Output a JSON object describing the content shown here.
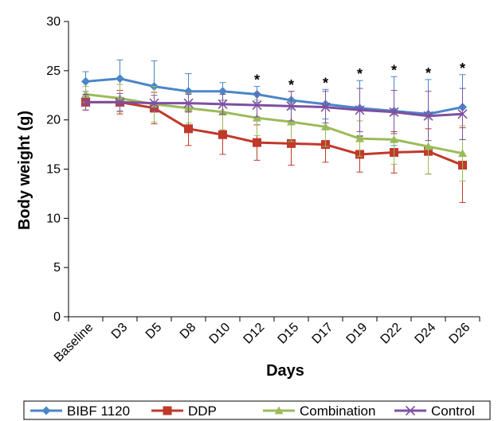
{
  "chart_data": {
    "type": "line",
    "xlabel": "Days",
    "ylabel": "Body weight (g)",
    "ylim": [
      0,
      30
    ],
    "yticks": [
      0,
      5,
      10,
      15,
      20,
      25,
      30
    ],
    "categories": [
      "Baseline",
      "D3",
      "D5",
      "D8",
      "D10",
      "D12",
      "D15",
      "D17",
      "D19",
      "D22",
      "D24",
      "D26"
    ],
    "significance_marker": "*",
    "significant_categories": [
      "D12",
      "D15",
      "D17",
      "D19",
      "D22",
      "D24",
      "D26"
    ],
    "legend_position": "bottom",
    "series": [
      {
        "name": "BIBF 1120",
        "color": "#4a86c8",
        "marker": "diamond",
        "values": [
          23.9,
          24.2,
          23.4,
          22.9,
          22.9,
          22.6,
          22.0,
          21.6,
          21.2,
          20.9,
          20.6,
          21.3
        ],
        "errors": [
          1.0,
          1.9,
          2.6,
          1.8,
          0.9,
          0.8,
          0.9,
          1.5,
          2.8,
          3.5,
          3.5,
          3.3
        ]
      },
      {
        "name": "DDP",
        "color": "#c0392b",
        "marker": "square",
        "values": [
          21.8,
          21.8,
          21.2,
          19.1,
          18.5,
          17.7,
          17.6,
          17.5,
          16.5,
          16.7,
          16.8,
          15.4
        ],
        "errors": [
          0.8,
          1.2,
          1.6,
          1.7,
          2.0,
          1.8,
          2.2,
          1.8,
          1.8,
          2.1,
          2.3,
          3.8
        ]
      },
      {
        "name": "Combination",
        "color": "#9bbb59",
        "marker": "triangle",
        "values": [
          22.6,
          22.2,
          21.6,
          21.2,
          20.8,
          20.2,
          19.8,
          19.3,
          18.1,
          18.0,
          17.3,
          16.6
        ],
        "errors": [
          0.8,
          1.4,
          1.8,
          1.5,
          1.8,
          1.8,
          2.0,
          2.0,
          1.8,
          2.5,
          2.8,
          2.8
        ]
      },
      {
        "name": "Control",
        "color": "#7f4fa1",
        "marker": "x",
        "values": [
          21.8,
          21.8,
          21.7,
          21.7,
          21.6,
          21.5,
          21.4,
          21.3,
          21.0,
          20.8,
          20.4,
          20.6
        ],
        "errors": [
          0.8,
          0.9,
          0.8,
          0.9,
          1.0,
          1.2,
          1.5,
          1.6,
          2.2,
          2.2,
          2.5,
          2.6
        ]
      }
    ]
  }
}
